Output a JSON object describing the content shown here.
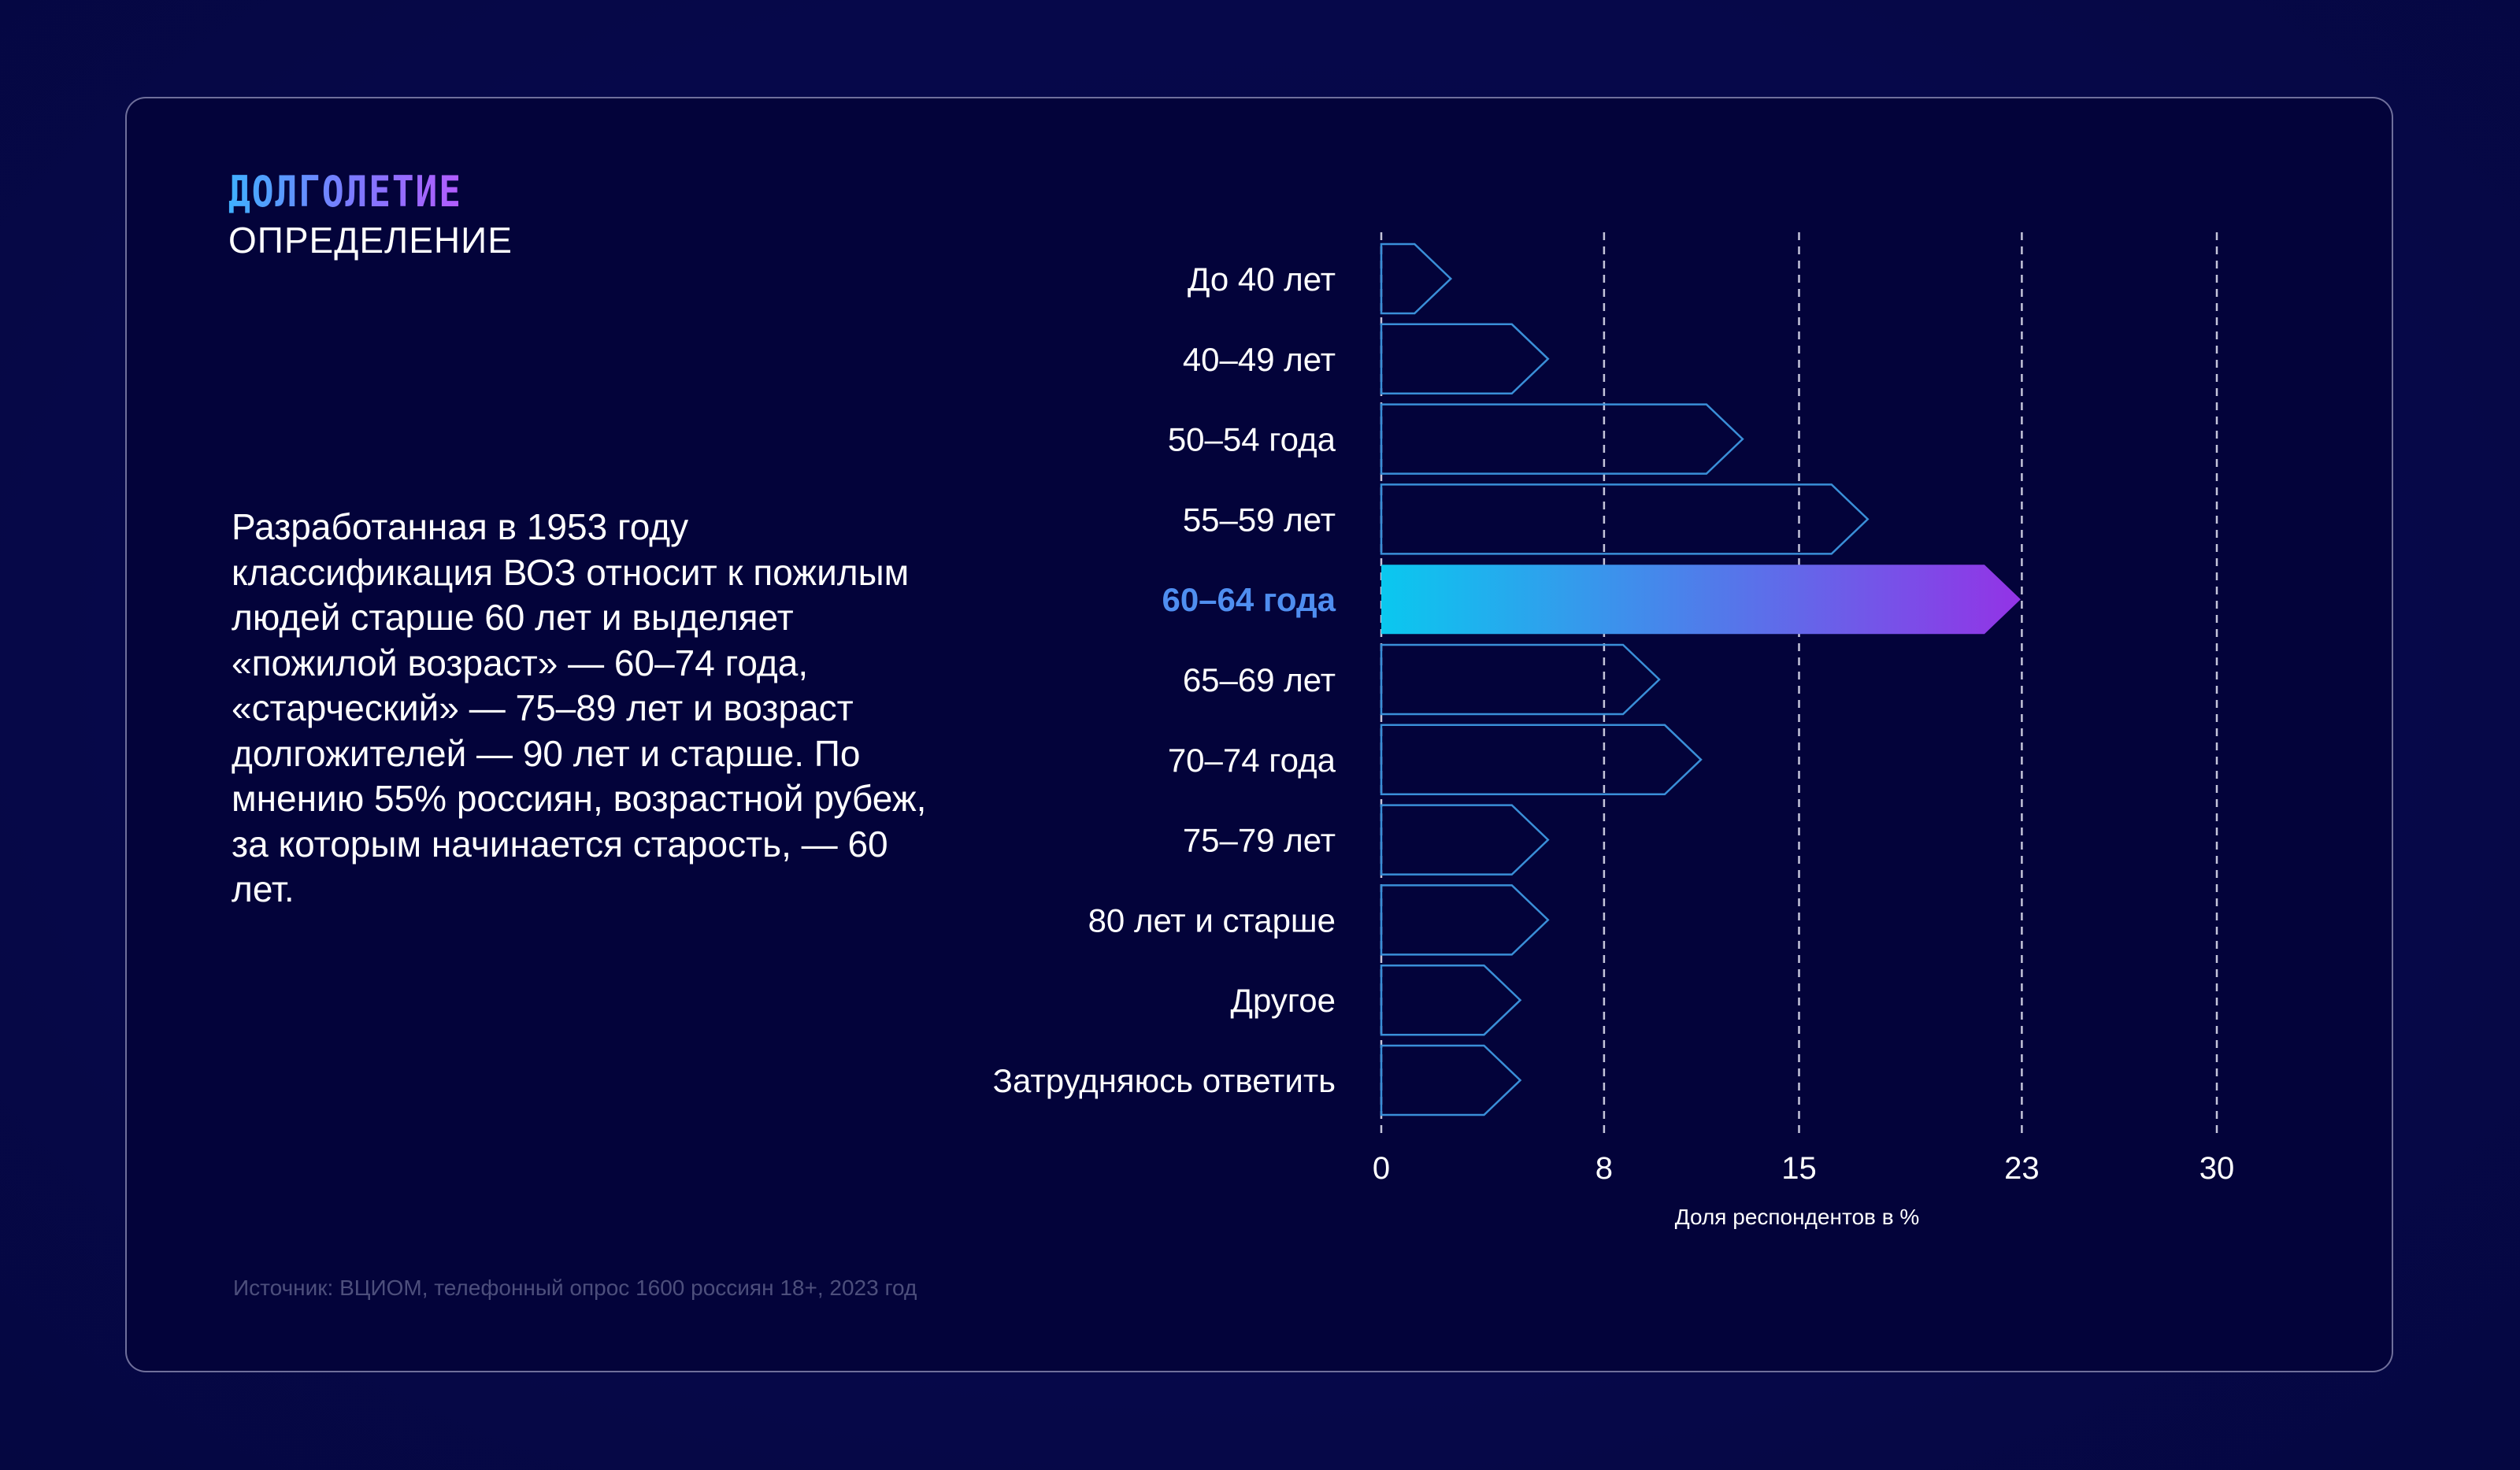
{
  "header": {
    "brand": "ДОЛГОЛЕТИЕ",
    "subtitle": "ОПРЕДЕЛЕНИЕ"
  },
  "body": {
    "text": "Разработанная в 1953 году классификация ВОЗ относит к пожилым людей старше 60 лет и выделяет «пожилой возраст» — 60–74 года, «старческий» — 75–89 лет и возраст долгожителей — 90 лет и старше. По мнению 55% россиян, возрастной рубеж, за которым начинается старость, — 60 лет."
  },
  "footer": {
    "source": "Источник: ВЦИОМ, телефонный опрос 1600 россиян 18+, 2023 год"
  },
  "colors": {
    "background": "#03033a",
    "outline_bar": "#3a8fd8",
    "highlight_start": "#0ac8ef",
    "highlight_end": "#9333e6",
    "highlight_label": "#4f8ef0",
    "grid": "#e6e6f5"
  },
  "chart_data": {
    "type": "bar",
    "orientation": "horizontal",
    "categories": [
      "До 40 лет",
      "40–49 лет",
      "50–54 года",
      "55–59 лет",
      "60–64 года",
      "65–69 лет",
      "70–74 года",
      "75–79 лет",
      "80 лет и старше",
      "Другое",
      "Затрудняюсь ответить"
    ],
    "values": [
      2.5,
      6,
      13,
      17.5,
      23,
      10,
      11.5,
      6,
      6,
      5,
      5
    ],
    "highlight_index": 4,
    "xlabel": "Доля респондентов в %",
    "ylabel": "",
    "title": "",
    "xticks": [
      "0",
      "8",
      "15",
      "23",
      "30"
    ],
    "xlim": [
      0,
      30
    ],
    "grid": "vertical dashed"
  }
}
